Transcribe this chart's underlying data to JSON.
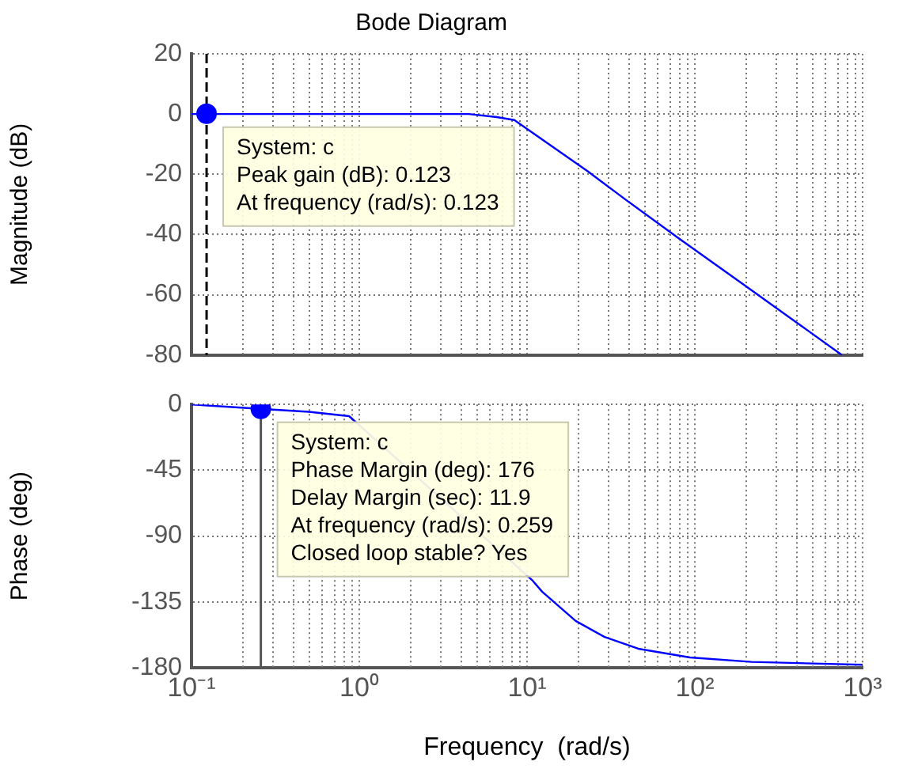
{
  "chart_data": [
    {
      "type": "line",
      "title": "Bode Diagram",
      "ylabel": "Magnitude (dB)",
      "xlim": [
        0.1,
        1000
      ],
      "ylim": [
        -80,
        20
      ],
      "log": "x",
      "grid": true,
      "tick_labels": "y",
      "legend": false,
      "xticks": [
        {
          "value": 0.1,
          "label": null
        },
        {
          "value": 1,
          "label": null
        },
        {
          "value": 10,
          "label": null
        },
        {
          "value": 100,
          "label": null
        },
        {
          "value": 1000,
          "label": null
        }
      ],
      "yticks": [
        -80,
        -60,
        -40,
        -20,
        0,
        20
      ],
      "series": [
        {
          "color": "#0000ff",
          "x": [
            0.1,
            0.5,
            1,
            2,
            4.5,
            6.6,
            8.4,
            23,
            40,
            79,
            200,
            400,
            753
          ],
          "values": [
            0,
            0,
            0,
            0,
            0,
            -1,
            -2,
            -19,
            -29,
            -41,
            -57,
            -69,
            -80
          ]
        },
        {
          "type": "scatter",
          "marker": "circle",
          "color": "#0000ff",
          "x": [
            0.123
          ],
          "values": [
            0.123
          ]
        }
      ],
      "ref_lines": [
        {
          "axis": "x",
          "value": 0.123,
          "color": "#000000",
          "line_style": "dashed"
        }
      ],
      "annotations": [
        {
          "text": "System: c\nPeak gain (dB): 0.123\nAt frequency (rad/s): 0.123",
          "x": 0.123,
          "y": 0.123
        }
      ]
    },
    {
      "type": "line",
      "xlabel": "Frequency  (rad/s)",
      "ylabel": "Phase (deg)",
      "xlim": [
        0.1,
        1000
      ],
      "ylim": [
        -180,
        0
      ],
      "log": "x",
      "grid": true,
      "legend": false,
      "xticks": [
        {
          "value": 0.1,
          "label": "10⁻¹"
        },
        {
          "value": 1,
          "label": "10⁰"
        },
        {
          "value": 10,
          "label": "10¹"
        },
        {
          "value": 100,
          "label": "10²"
        },
        {
          "value": 1000,
          "label": "10³"
        }
      ],
      "yticks": [
        -180,
        -135,
        -90,
        -45,
        0
      ],
      "series": [
        {
          "color": "#0000ff",
          "x": [
            0.1,
            0.255,
            0.5,
            0.87,
            10.7,
            12.3,
            19.5,
            29,
            46,
            93.5,
            218,
            1000
          ],
          "values": [
            0,
            -3,
            -5,
            -8,
            -120,
            -128,
            -148,
            -159,
            -167,
            -173,
            -176,
            -178
          ]
        },
        {
          "type": "scatter",
          "marker": "circle",
          "color": "#0000ff",
          "x": [
            0.259
          ],
          "values": [
            -3
          ]
        }
      ],
      "ref_lines": [
        {
          "axis": "x",
          "value": 0.259,
          "color": "#555555",
          "line_style": "solid"
        }
      ],
      "annotations": [
        {
          "text": "System: c\nPhase Margin (deg): 176\nDelay Margin (sec): 11.9\nAt frequency (rad/s): 0.259\nClosed loop stable? Yes",
          "x": 0.259,
          "y": -3
        }
      ]
    }
  ]
}
